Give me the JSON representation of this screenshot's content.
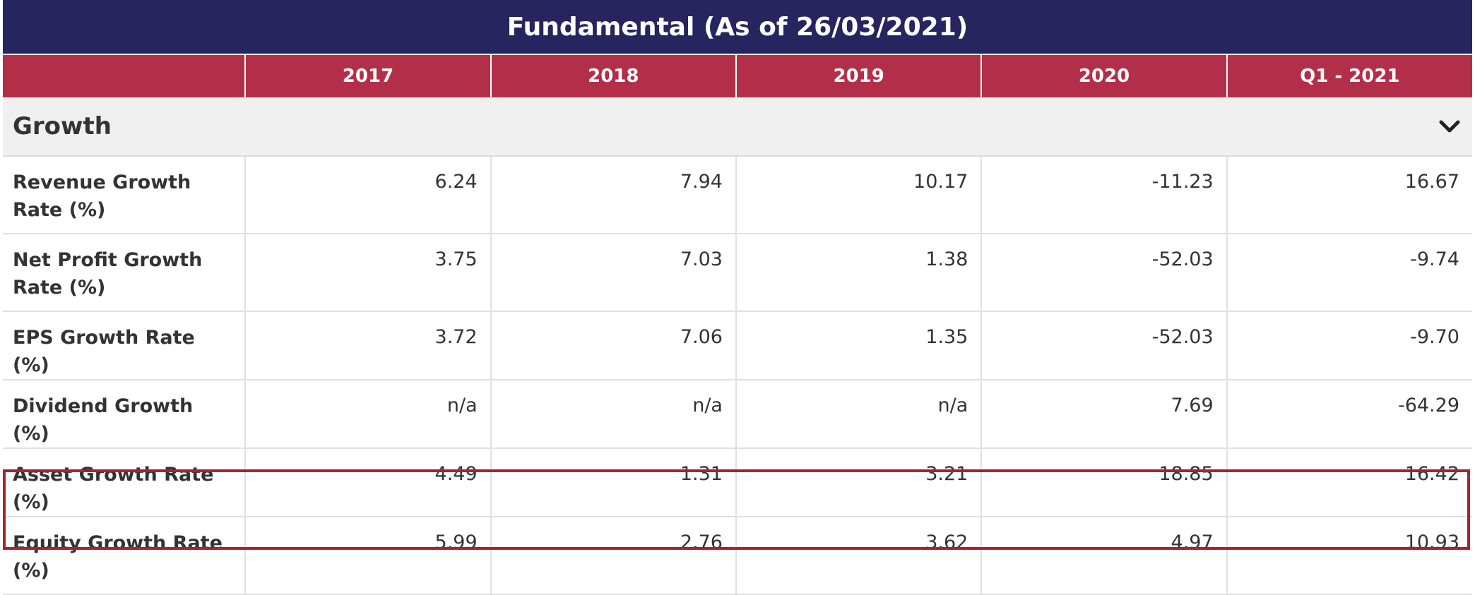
{
  "title": "Fundamental (As of 26/03/2021)",
  "columns": [
    "2017",
    "2018",
    "2019",
    "2020",
    "Q1 - 2021"
  ],
  "section": {
    "label": "Growth",
    "toggle_icon": "chevron-down-icon"
  },
  "rows": [
    {
      "label": "Revenue Growth Rate (%)",
      "values": [
        "6.24",
        "7.94",
        "10.17",
        "-11.23",
        "16.67"
      ]
    },
    {
      "label": "Net Profit Growth Rate (%)",
      "values": [
        "3.75",
        "7.03",
        "1.38",
        "-52.03",
        "-9.74"
      ]
    },
    {
      "label": "EPS Growth Rate (%)",
      "values": [
        "3.72",
        "7.06",
        "1.35",
        "-52.03",
        "-9.70"
      ]
    },
    {
      "label": "Dividend Growth (%)",
      "values": [
        "n/a",
        "n/a",
        "n/a",
        "7.69",
        "-64.29"
      ]
    },
    {
      "label": "Asset Growth Rate (%)",
      "values": [
        "4.49",
        "1.31",
        "3.21",
        "18.85",
        "16.42"
      ]
    },
    {
      "label": "Equity Growth Rate (%)",
      "values": [
        "5.99",
        "2.76",
        "3.62",
        "4.97",
        "10.93"
      ]
    }
  ],
  "colors": {
    "title_bg": "#26255f",
    "header_bg": "#b32e48",
    "section_bg": "#f0f0f0",
    "highlight_border": "#a8232a"
  }
}
